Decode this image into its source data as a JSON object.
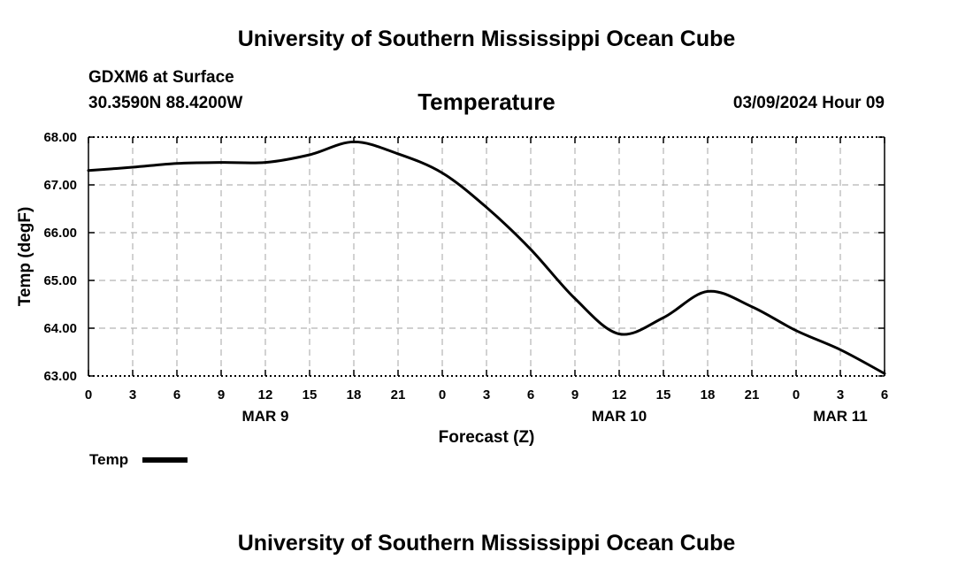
{
  "header": {
    "title_top": "University of Southern Mississippi Ocean Cube",
    "station": "GDXM6 at Surface",
    "coords": "30.3590N  88.4200W",
    "datetime": "03/09/2024 Hour 09",
    "title_bottom": "University of Southern Mississippi Ocean Cube"
  },
  "legend": {
    "label": "Temp"
  },
  "colors": {
    "line": "#000000",
    "grid": "#b4b4b4",
    "background": "#ffffff"
  },
  "chart_data": {
    "type": "line",
    "title": "Temperature",
    "xlabel": "Forecast (Z)",
    "ylabel": "Temp (degF)",
    "grid": true,
    "legend_position": "bottom-left",
    "xlim": [
      0,
      54
    ],
    "ylim": [
      63.0,
      68.0
    ],
    "x_ticks": [
      0,
      3,
      6,
      9,
      12,
      15,
      18,
      21,
      24,
      27,
      30,
      33,
      36,
      39,
      42,
      45,
      48,
      51,
      54
    ],
    "x_tick_labels": [
      "0",
      "3",
      "6",
      "9",
      "12",
      "15",
      "18",
      "21",
      "0",
      "3",
      "6",
      "9",
      "12",
      "15",
      "18",
      "21",
      "0",
      "3",
      "6"
    ],
    "date_labels": [
      {
        "label": "MAR 9",
        "x": 12
      },
      {
        "label": "MAR 10",
        "x": 36
      },
      {
        "label": "MAR 11",
        "x": 51
      }
    ],
    "y_ticks": [
      63.0,
      64.0,
      65.0,
      66.0,
      67.0,
      68.0
    ],
    "y_tick_labels": [
      "63.00",
      "64.00",
      "65.00",
      "66.00",
      "67.00",
      "68.00"
    ],
    "series": [
      {
        "name": "Temp",
        "x": [
          0,
          3,
          6,
          9,
          12,
          15,
          18,
          21,
          24,
          27,
          30,
          33,
          36,
          39,
          42,
          45,
          48,
          51,
          54
        ],
        "values": [
          67.3,
          67.37,
          67.45,
          67.47,
          67.47,
          67.63,
          67.9,
          67.65,
          67.25,
          66.53,
          65.65,
          64.62,
          63.88,
          64.22,
          64.77,
          64.45,
          63.95,
          63.55,
          63.05
        ]
      }
    ]
  }
}
